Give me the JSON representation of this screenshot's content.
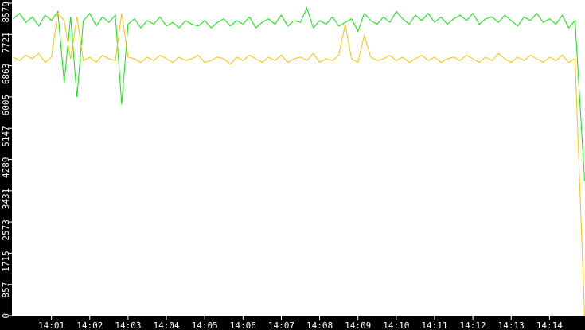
{
  "chart_data": {
    "type": "line",
    "title": "",
    "xlabel": "",
    "ylabel": "",
    "ylim": [
      0,
      8579
    ],
    "y_ticks": [
      "0",
      "857",
      "1715",
      "2573",
      "3431",
      "4289",
      "5147",
      "6005",
      "6863",
      "7721",
      "8579"
    ],
    "x_ticks": [
      "14:01",
      "14:02",
      "14:03",
      "14:04",
      "14:05",
      "14:06",
      "14:07",
      "14:08",
      "14:09",
      "14:10",
      "14:11",
      "14:12",
      "14:13",
      "14:14"
    ],
    "x_range": [
      "14:00:00",
      "14:14:55"
    ],
    "grid": false,
    "x": [
      "14:00:00",
      "14:00:10",
      "14:00:20",
      "14:00:30",
      "14:00:40",
      "14:00:50",
      "14:01:00",
      "14:01:10",
      "14:01:20",
      "14:01:30",
      "14:01:40",
      "14:01:50",
      "14:02:00",
      "14:02:10",
      "14:02:20",
      "14:02:30",
      "14:02:40",
      "14:02:50",
      "14:03:00",
      "14:03:10",
      "14:03:20",
      "14:03:30",
      "14:03:40",
      "14:03:50",
      "14:04:00",
      "14:04:10",
      "14:04:20",
      "14:04:30",
      "14:04:40",
      "14:04:50",
      "14:05:00",
      "14:05:10",
      "14:05:20",
      "14:05:30",
      "14:05:40",
      "14:05:50",
      "14:06:00",
      "14:06:10",
      "14:06:20",
      "14:06:30",
      "14:06:40",
      "14:06:50",
      "14:07:00",
      "14:07:10",
      "14:07:20",
      "14:07:30",
      "14:07:40",
      "14:07:50",
      "14:08:00",
      "14:08:10",
      "14:08:20",
      "14:08:30",
      "14:08:40",
      "14:08:50",
      "14:09:00",
      "14:09:10",
      "14:09:20",
      "14:09:30",
      "14:09:40",
      "14:09:50",
      "14:10:00",
      "14:10:10",
      "14:10:20",
      "14:10:30",
      "14:10:40",
      "14:10:50",
      "14:11:00",
      "14:11:10",
      "14:11:20",
      "14:11:30",
      "14:11:40",
      "14:11:50",
      "14:12:00",
      "14:12:10",
      "14:12:20",
      "14:12:30",
      "14:12:40",
      "14:12:50",
      "14:13:00",
      "14:13:10",
      "14:13:20",
      "14:13:30",
      "14:13:40",
      "14:13:50",
      "14:14:00",
      "14:14:10",
      "14:14:20",
      "14:14:30",
      "14:14:40",
      "14:14:55"
    ],
    "series": [
      {
        "color": "#00ee00",
        "values": [
          8150,
          8300,
          8050,
          8200,
          7950,
          8250,
          8100,
          8350,
          6400,
          8200,
          6000,
          8100,
          8300,
          7950,
          8200,
          8050,
          8250,
          5800,
          8000,
          8150,
          7900,
          8100,
          8000,
          8200,
          7950,
          8050,
          7900,
          8100,
          8000,
          7950,
          8100,
          7900,
          8050,
          8150,
          7950,
          8100,
          8000,
          8200,
          7900,
          8050,
          8150,
          8000,
          8250,
          7950,
          8100,
          8050,
          8450,
          7900,
          8100,
          8000,
          8200,
          7950,
          8050,
          8150,
          7800,
          8300,
          8100,
          8000,
          8200,
          8050,
          8350,
          8150,
          8000,
          8250,
          8100,
          8300,
          8050,
          8200,
          8000,
          8150,
          8250,
          8100,
          8300,
          8000,
          8150,
          8200,
          8050,
          8250,
          8100,
          7950,
          8200,
          8100,
          8300,
          8050,
          8150,
          8000,
          8250,
          7900,
          8100,
          3700
        ]
      },
      {
        "color": "#ffc000",
        "values": [
          7100,
          7000,
          7150,
          7050,
          7200,
          6950,
          7100,
          8300,
          8100,
          7050,
          8200,
          7000,
          7100,
          6950,
          7150,
          7050,
          7000,
          8300,
          7100,
          7050,
          6950,
          7100,
          7000,
          7150,
          7050,
          6950,
          7100,
          7000,
          7050,
          7150,
          6950,
          7000,
          7100,
          7050,
          6900,
          7100,
          7000,
          7150,
          7050,
          6950,
          7100,
          7000,
          7150,
          6950,
          7050,
          7100,
          7000,
          7200,
          6950,
          7050,
          7000,
          7150,
          8000,
          7050,
          6950,
          7700,
          7100,
          7000,
          7050,
          7150,
          7000,
          7100,
          6950,
          7050,
          7150,
          7000,
          7100,
          6950,
          7050,
          7100,
          7000,
          7150,
          7050,
          6950,
          7100,
          7000,
          7200,
          7050,
          6950,
          7100,
          7000,
          7150,
          7050,
          6950,
          7100,
          7000,
          7150,
          6950,
          7050,
          0
        ]
      }
    ]
  }
}
